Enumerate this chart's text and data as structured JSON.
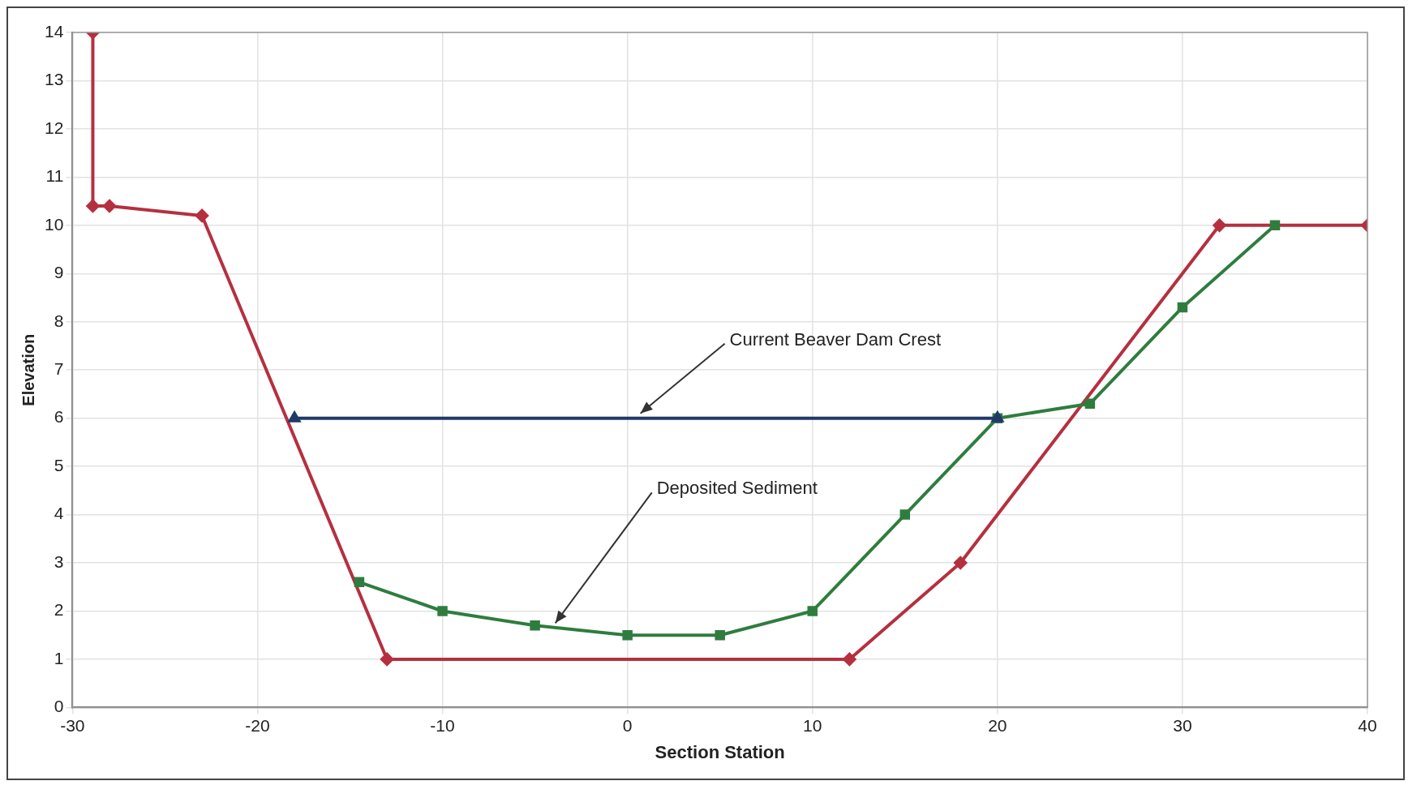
{
  "chart_data": {
    "type": "line",
    "xlabel": "Section Station",
    "ylabel": "Elevation",
    "xlim": [
      -30,
      40
    ],
    "xticks": [
      -30,
      -20,
      -10,
      0,
      10,
      20,
      30,
      40
    ],
    "ylim": [
      0,
      14
    ],
    "yticks": [
      0,
      1,
      2,
      3,
      4,
      5,
      6,
      7,
      8,
      9,
      10,
      11,
      12,
      13,
      14
    ],
    "grid": true,
    "legend": false,
    "line_style": "solid",
    "series": [
      {
        "color": "#b5303f",
        "marker": "diamond",
        "x": [
          -28.9,
          -28.9,
          -28,
          -23,
          -13,
          12,
          18,
          32,
          40
        ],
        "values": [
          14,
          10.4,
          10.4,
          10.2,
          1,
          1,
          3,
          10,
          10
        ]
      },
      {
        "color": "#2e7d3e",
        "marker": "square",
        "x": [
          -14.5,
          -10,
          -5,
          0,
          5,
          10,
          15,
          20,
          25,
          30,
          35
        ],
        "values": [
          2.6,
          2,
          1.7,
          1.5,
          1.5,
          2,
          4,
          6,
          6.3,
          8.3,
          10
        ]
      },
      {
        "color": "#1f3a68",
        "marker": "triangle",
        "x": [
          -18,
          20
        ],
        "values": [
          6,
          6
        ]
      }
    ],
    "annotations": [
      {
        "text": "Current Beaver Dam Crest",
        "x": 0.7,
        "y": 6.1
      },
      {
        "text": "Deposited Sediment",
        "x": -3.9,
        "y": 1.75
      }
    ]
  }
}
